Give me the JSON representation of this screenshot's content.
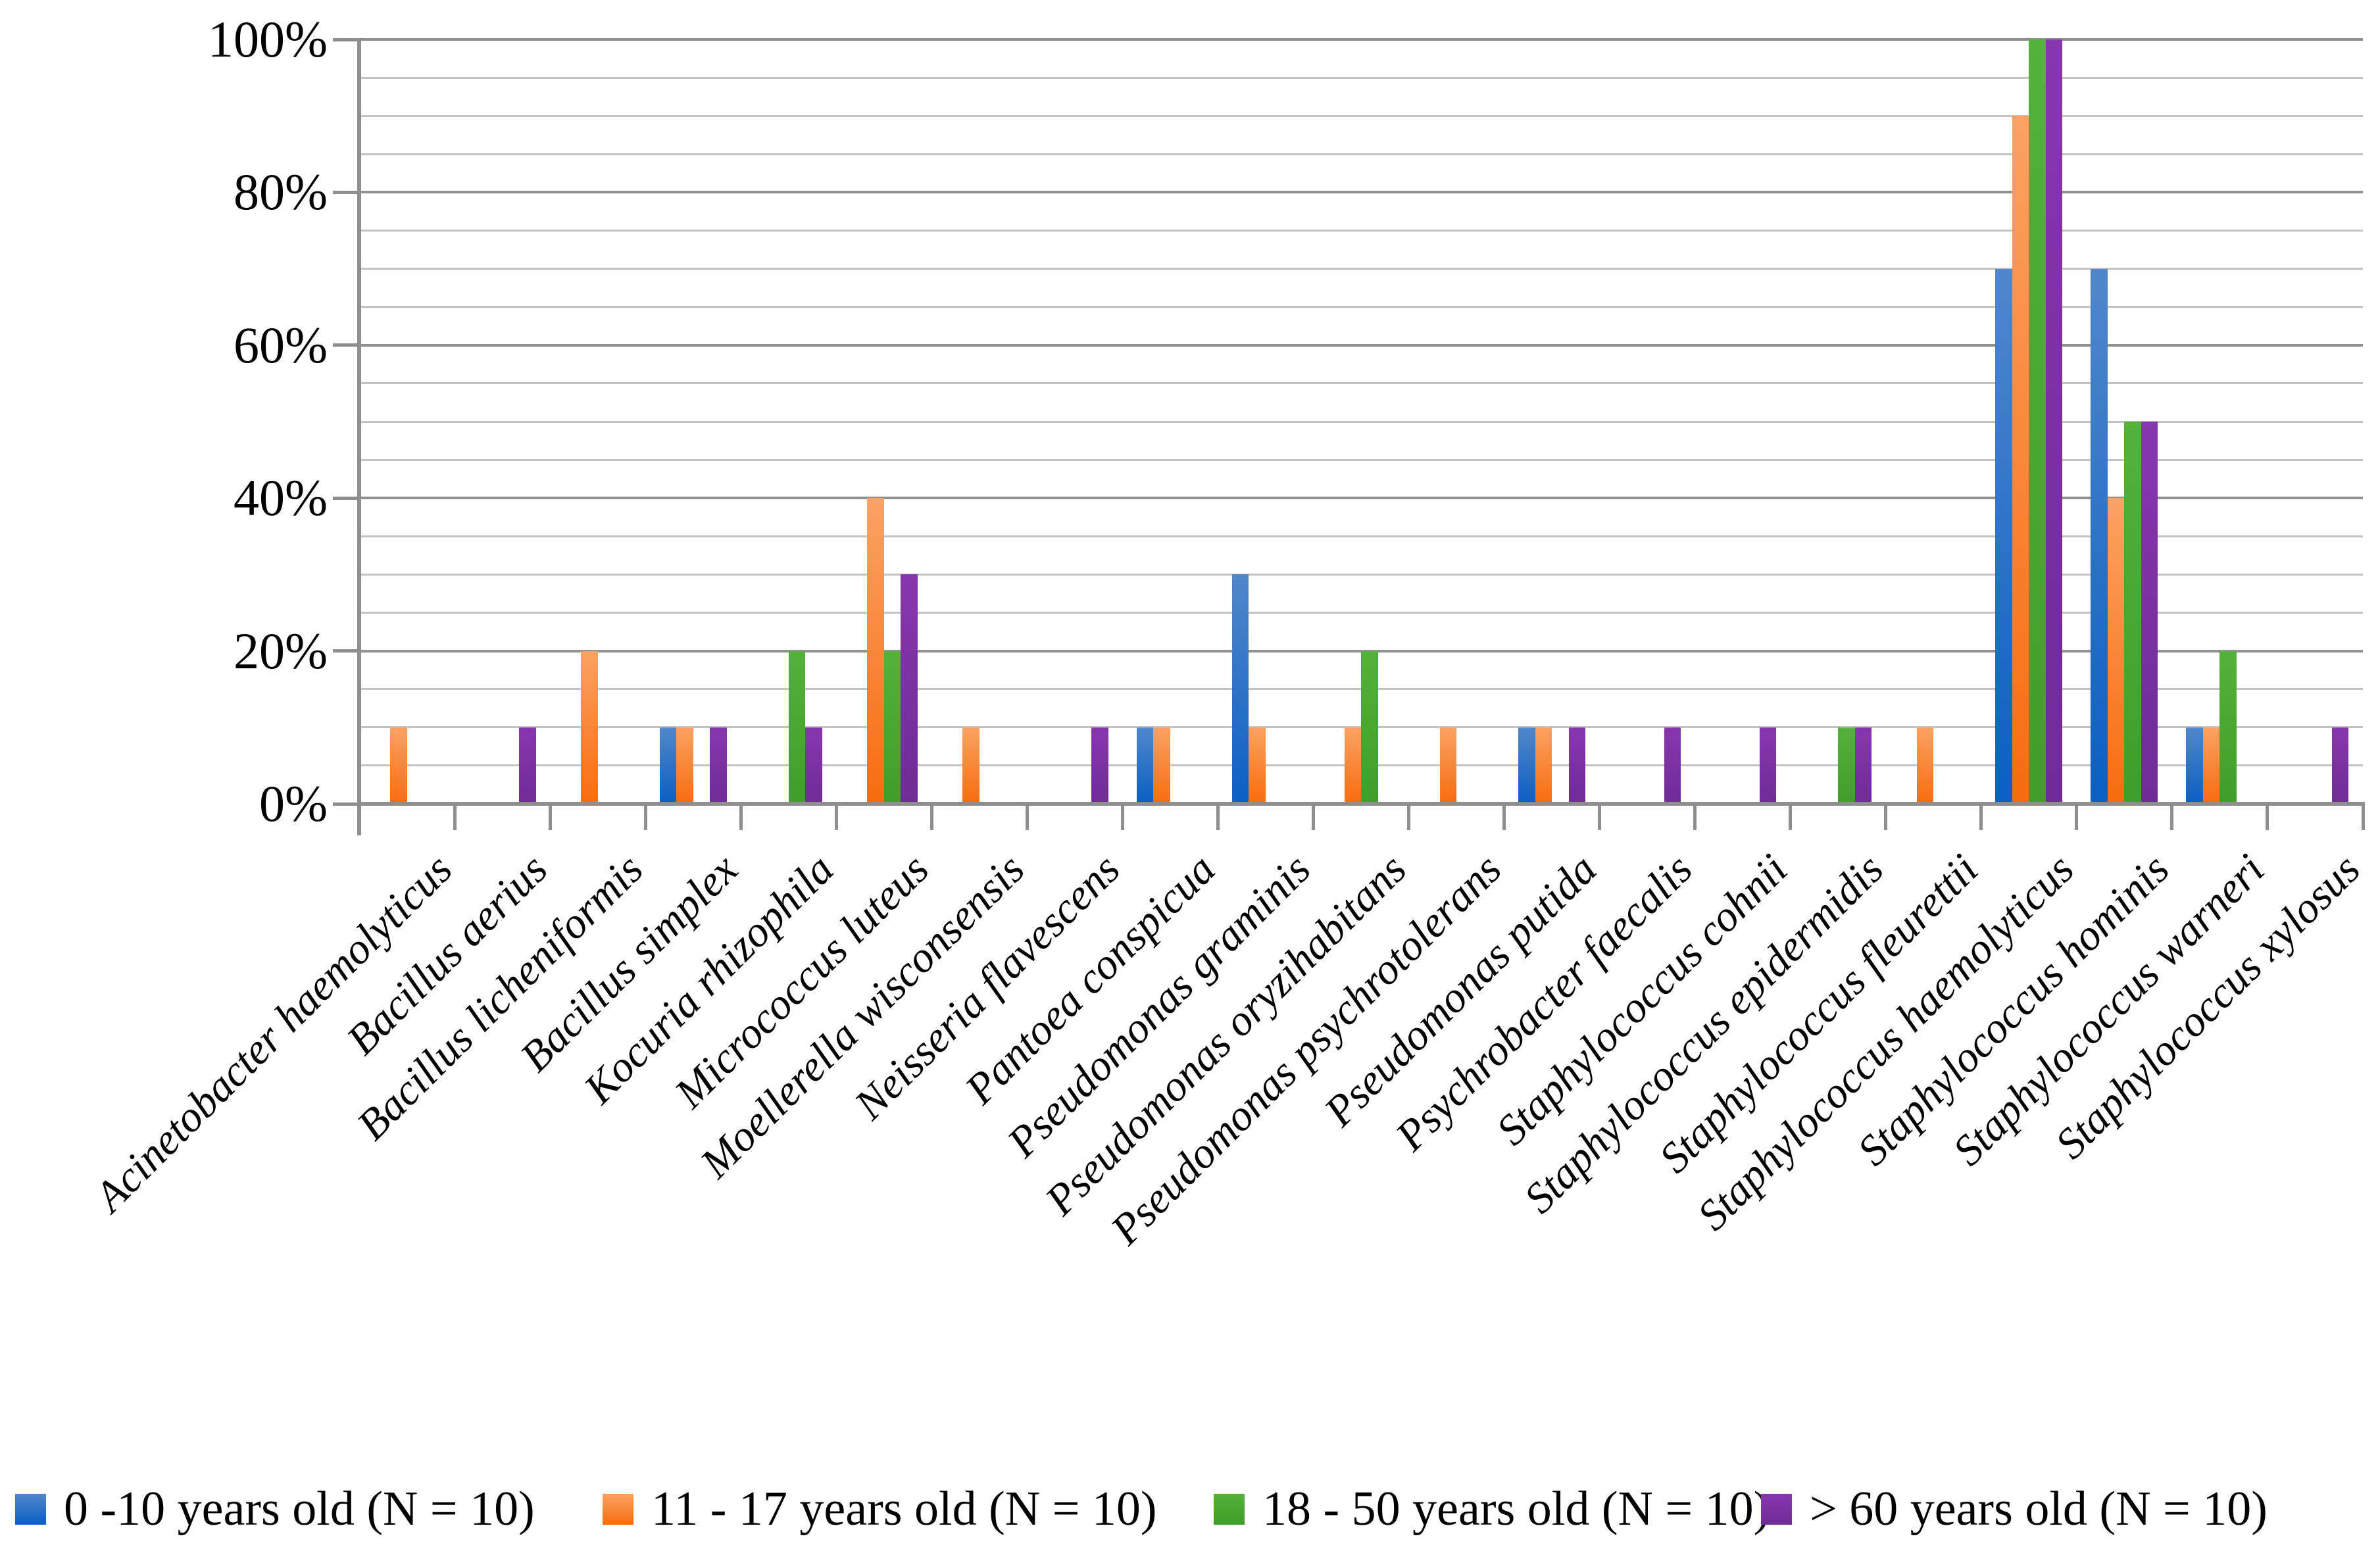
{
  "chart_data": {
    "type": "bar",
    "title": "",
    "xlabel": "",
    "ylabel": "",
    "grid": true,
    "legend_position": "bottom",
    "y_axis": {
      "min": 0,
      "max": 100,
      "minor_step": 5,
      "major_step": 20,
      "tick_labels": [
        "0%",
        "20%",
        "40%",
        "60%",
        "80%",
        "100%"
      ],
      "unit": "%"
    },
    "categories": [
      "Acinetobacter haemolyticus",
      "Bacillus aerius",
      "Bacillus licheniformis",
      "Bacillus simplex",
      "Kocuria rhizophila",
      "Micrococcus luteus",
      "Moellerella wisconsensis",
      "Neisseria flavescens",
      "Pantoea conspicua",
      "Pseudomonas graminis",
      "Pseudomonas oryzihabitans",
      "Pseudomonas psychrotolerans",
      "Pseudomonas putida",
      "Psychrobacter faecalis",
      "Staphylococcus cohnii",
      "Staphylococcus epidermidis",
      "Staphylococcus fleurettii",
      "Staphylococcus haemolyticus",
      "Staphylococcus hominis",
      "Staphylococcus warneri",
      "Staphylococcus xylosus"
    ],
    "series": [
      {
        "name": "0 -10 years old (N = 10)",
        "color_top": "#5187ca",
        "color_bottom": "#0a5fc4",
        "values": [
          0,
          0,
          0,
          10,
          0,
          0,
          0,
          0,
          10,
          30,
          0,
          0,
          10,
          0,
          0,
          0,
          0,
          70,
          70,
          10,
          0
        ]
      },
      {
        "name": "11 - 17 years old (N = 10)",
        "color_top": "#fba263",
        "color_bottom": "#f76c0e",
        "values": [
          10,
          0,
          20,
          10,
          0,
          40,
          10,
          0,
          10,
          10,
          10,
          10,
          10,
          0,
          0,
          0,
          10,
          90,
          40,
          10,
          0
        ]
      },
      {
        "name": "18 - 50 years old (N = 10)",
        "color_top": "#54b13b",
        "color_bottom": "#3f9e29",
        "values": [
          0,
          0,
          0,
          0,
          20,
          20,
          0,
          0,
          0,
          0,
          20,
          0,
          0,
          0,
          0,
          10,
          0,
          100,
          50,
          20,
          0
        ]
      },
      {
        "name": "> 60 years old (N = 10)",
        "color_top": "#8737ad",
        "color_bottom": "#6f2b96",
        "values": [
          0,
          10,
          0,
          10,
          10,
          30,
          0,
          10,
          0,
          0,
          0,
          0,
          10,
          10,
          10,
          10,
          0,
          100,
          50,
          0,
          10
        ]
      }
    ]
  },
  "style_colors": {
    "minor_gridline": "#c3c3c3",
    "major_gridline": "#909090",
    "axis_line": "#8e8e8e",
    "text": "#000000",
    "background": "#ffffff"
  }
}
